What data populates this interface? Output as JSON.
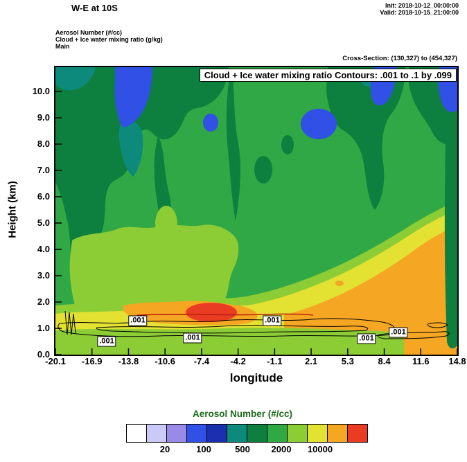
{
  "header": {
    "title": "W-E at 10S",
    "init_line": "Init: 2018-10-12_00:00:00",
    "valid_line": "Valid: 2018-10-15_21:00:00",
    "field_lines": [
      "Aerosol Number  (#/cc)",
      "Cloud + Ice water mixing ratio  (g/kg)",
      "Main"
    ],
    "cross_section": "Cross-Section: (130,327) to (454,327)"
  },
  "plot": {
    "contour_title": "Cloud + Ice water mixing ratio Contours: .001 to .1 by .099",
    "ylabel": "Height (km)",
    "xlabel": "longitude",
    "contour_labels": [
      ".001",
      ".001",
      ".001",
      ".001",
      ".001",
      ".001"
    ]
  },
  "chart_data": {
    "type": "heatmap",
    "title": "W-E vertical cross-section at 10S",
    "fill_variable": "Aerosol Number (#/cc)",
    "contour_variable": "Cloud + Ice water mixing ratio (g/kg)",
    "contour_levels": {
      "from": 0.001,
      "to": 0.1,
      "by": 0.099,
      "labeled": [
        0.001
      ]
    },
    "xlabel": "longitude",
    "ylabel": "Height (km)",
    "x_ticks": [
      "-20.1",
      "-16.9",
      "-13.8",
      "-10.6",
      "-7.4",
      "-4.2",
      "-1.1",
      "2.1",
      "5.3",
      "8.4",
      "11.6",
      "14.8"
    ],
    "y_ticks": [
      "10.0",
      "9.0",
      "8.0",
      "7.0",
      "6.0",
      "5.0",
      "4.0",
      "3.0",
      "2.0",
      "1.0",
      "0.0"
    ],
    "xlim": [
      -20.1,
      14.8
    ],
    "ylim": [
      0,
      10.9
    ],
    "grid": false,
    "field_summary": [
      {
        "region": "most of section above ~2 km",
        "value": "500-2000 #/cc (medium green)"
      },
      {
        "region": "upper-left mass, upper-center and right-edge patches",
        "value": "100-500 #/cc (dark green / teal)"
      },
      {
        "region": "isolated upper-level blobs near -16.9, -7.4, 2.1, 8.4, 14.8 lon",
        "value": "20-100 #/cc (blue)"
      },
      {
        "region": "lower-left band 1-3 km and bottom strip",
        "value": "2000-10000 #/cc (yellow-green / yellow)"
      },
      {
        "region": "lower-right wedge below ~4 km and band near 1.5 km around -7.4 lon",
        "value": ">10000 #/cc (orange, red core)"
      },
      {
        "region": "cloud + ice .001 g/kg contour loops",
        "value": "near 0.5-1.2 km across full section"
      }
    ]
  },
  "colorbar": {
    "title": "Aerosol Number  (#/cc)",
    "title_color": "#1a6b1a",
    "colors": [
      "#ffffff",
      "#cbc9f6",
      "#998ae8",
      "#3050e6",
      "#1b2fb0",
      "#0e8a7c",
      "#0d8040",
      "#2fa845",
      "#8ccc35",
      "#e3e233",
      "#f5a623",
      "#e93c22"
    ],
    "tick_labels": [
      "20",
      "100",
      "500",
      "2000",
      "10000"
    ],
    "tick_after_cell": [
      2,
      4,
      6,
      8,
      10
    ]
  }
}
